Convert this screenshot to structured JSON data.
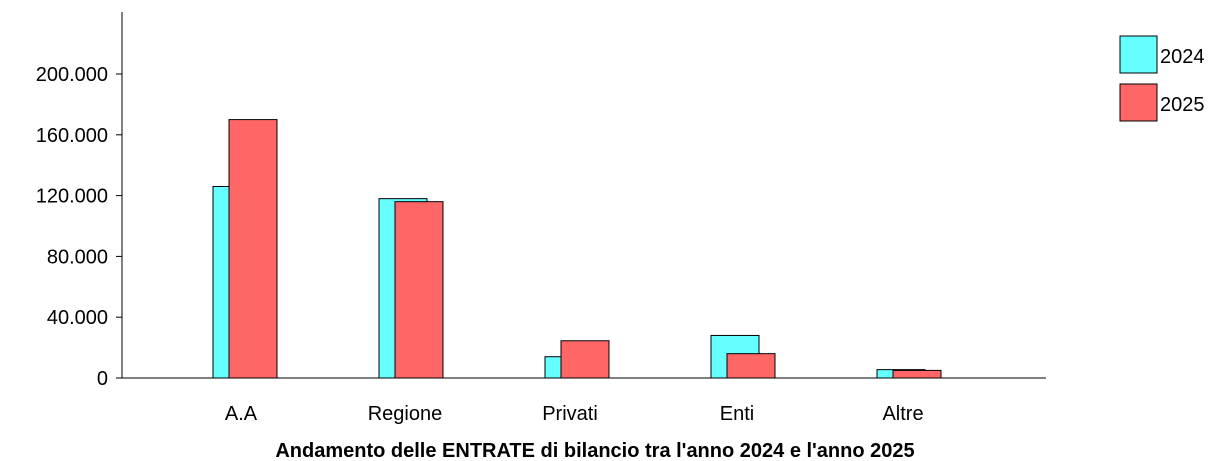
{
  "chart_data": {
    "type": "bar",
    "title": "Andamento delle ENTRATE di bilancio tra l'anno 2024 e l'anno 2025",
    "xlabel": "",
    "ylabel": "",
    "categories": [
      "A.A",
      "Regione",
      "Privati",
      "Enti",
      "Altre"
    ],
    "series": [
      {
        "name": "2024",
        "color": "#66FFFF",
        "values": [
          126000,
          118000,
          14000,
          28000,
          5500
        ]
      },
      {
        "name": "2025",
        "color": "#FF6666",
        "values": [
          170000,
          116000,
          24500,
          16000,
          5000
        ]
      }
    ],
    "ylim": [
      0,
      240000
    ],
    "yticks": [
      0,
      40000,
      80000,
      120000,
      160000,
      200000
    ],
    "ytick_labels": [
      "0",
      "40.000",
      "80.000",
      "120.000",
      "160.000",
      "200.000"
    ],
    "legend_position": "top-right",
    "grid": false
  }
}
